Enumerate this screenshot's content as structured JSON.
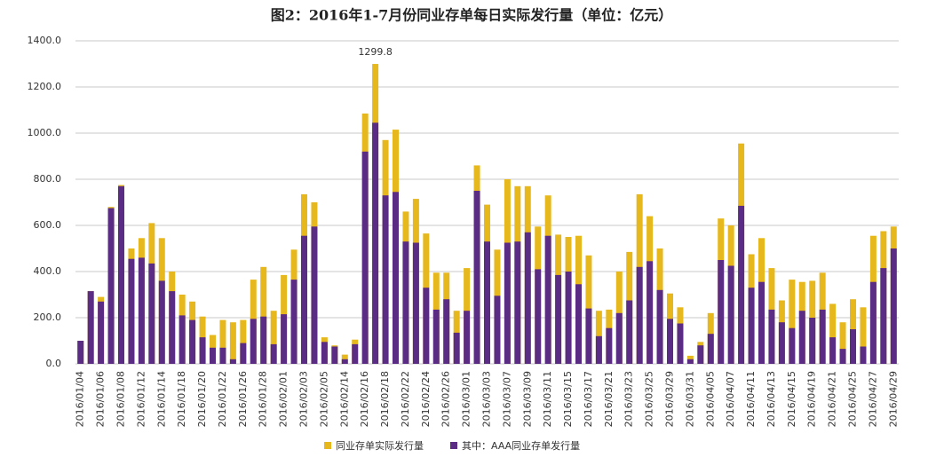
{
  "chart_data": {
    "type": "bar",
    "overlap": true,
    "title": "图2：2016年1-7月份同业存单每日实际发行量（单位：亿元）",
    "categories": [
      "2016/01/04",
      null,
      "2016/01/06",
      null,
      "2016/01/08",
      null,
      "2016/01/12",
      null,
      "2016/01/14",
      null,
      "2016/01/18",
      null,
      "2016/01/20",
      null,
      "2016/01/22",
      null,
      "2016/01/26",
      null,
      "2016/01/28",
      null,
      "2016/02/01",
      null,
      "2016/02/03",
      null,
      "2016/02/05",
      null,
      "2016/02/14",
      null,
      "2016/02/16",
      null,
      "2016/02/18",
      null,
      "2016/02/22",
      null,
      "2016/02/24",
      null,
      "2016/02/26",
      null,
      "2016/03/01",
      null,
      "2016/03/03",
      null,
      "2016/03/07",
      null,
      "2016/03/09",
      null,
      "2016/03/11",
      null,
      "2016/03/15",
      null,
      "2016/03/17",
      null,
      "2016/03/21",
      null,
      "2016/03/23",
      null,
      "2016/03/25",
      null,
      "2016/03/29",
      null,
      "2016/03/31",
      null,
      "2016/04/05",
      null,
      "2016/04/07",
      null,
      "2016/04/11",
      null,
      "2016/04/13",
      null,
      "2016/04/15",
      null,
      "2016/04/19",
      null,
      "2016/04/21",
      null,
      "2016/04/25",
      null,
      "2016/04/27",
      null,
      "2016/04/29"
    ],
    "series": [
      {
        "name": "同业存单实际发行量",
        "color": "#e6b81e",
        "values": [
          100,
          315,
          290,
          680,
          775,
          500,
          545,
          610,
          545,
          400,
          300,
          270,
          205,
          125,
          190,
          180,
          190,
          365,
          420,
          230,
          385,
          495,
          735,
          700,
          115,
          80,
          40,
          105,
          1085,
          1299.8,
          970,
          1015,
          660,
          715,
          565,
          395,
          395,
          230,
          415,
          860,
          690,
          495,
          800,
          770,
          770,
          595,
          730,
          560,
          550,
          555,
          470,
          230,
          235,
          400,
          485,
          735,
          640,
          500,
          305,
          245,
          35,
          95,
          220,
          630,
          600,
          955,
          475,
          545,
          415,
          275,
          365,
          355,
          360,
          395,
          260,
          180,
          280,
          245,
          555,
          575,
          595
        ]
      },
      {
        "name": "其中：AAA同业存单发行量",
        "color": "#5b2c83",
        "values": [
          100,
          315,
          270,
          675,
          770,
          455,
          460,
          435,
          360,
          315,
          210,
          190,
          115,
          70,
          70,
          20,
          90,
          195,
          205,
          85,
          215,
          365,
          555,
          595,
          95,
          75,
          20,
          85,
          920,
          1045,
          730,
          745,
          530,
          525,
          330,
          235,
          280,
          135,
          230,
          750,
          530,
          295,
          525,
          530,
          570,
          410,
          555,
          385,
          400,
          345,
          240,
          120,
          155,
          220,
          275,
          420,
          445,
          320,
          195,
          175,
          20,
          80,
          130,
          450,
          425,
          685,
          330,
          355,
          235,
          180,
          155,
          230,
          200,
          235,
          115,
          65,
          150,
          75,
          355,
          415,
          500
        ]
      }
    ],
    "ylim": [
      0,
      1400
    ],
    "yticks": [
      {
        "value": 0,
        "label": "0.0"
      },
      {
        "value": 200,
        "label": "200.0"
      },
      {
        "value": 400,
        "label": "400.0"
      },
      {
        "value": 600,
        "label": "600.0"
      },
      {
        "value": 800,
        "label": "800.0"
      },
      {
        "value": 1000,
        "label": "1000.0"
      },
      {
        "value": 1200,
        "label": "1200.0"
      },
      {
        "value": 1400,
        "label": "1400.0"
      }
    ],
    "grid": true,
    "legend": "bottom"
  }
}
